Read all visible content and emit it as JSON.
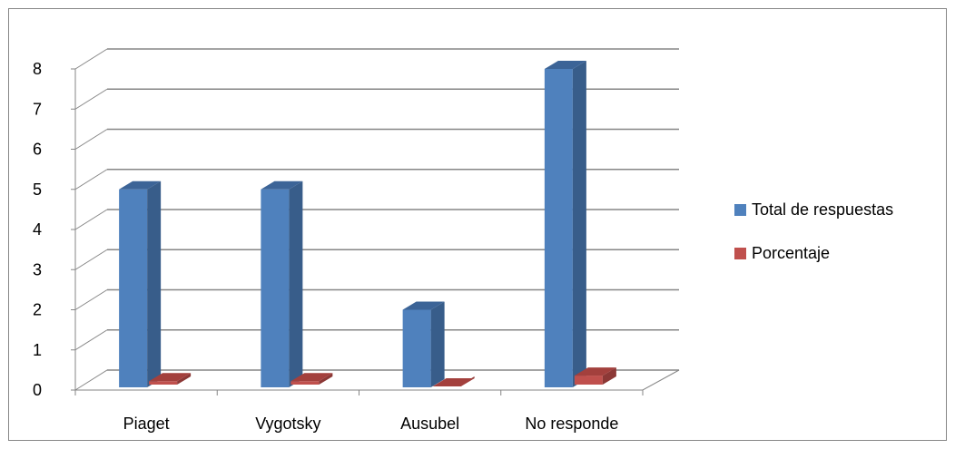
{
  "chart_data": {
    "type": "bar",
    "variant": "3d-clustered-column",
    "categories": [
      "Piaget",
      "Vygotsky",
      "Ausubel",
      "No responde"
    ],
    "series": [
      {
        "name": "Total de respuestas",
        "values": [
          5,
          5,
          2,
          8
        ],
        "color": "#4F81BD",
        "side_color": "#385D8A",
        "top_color": "#3C6497"
      },
      {
        "name": "Porcentaje",
        "values": [
          0.22,
          0.22,
          0.09,
          0.36
        ],
        "color": "#C0504D",
        "side_color": "#8C3836",
        "top_color": "#A3403D"
      }
    ],
    "ylim": [
      0,
      8
    ],
    "yticks": [
      "0",
      "1",
      "2",
      "3",
      "4",
      "5",
      "6",
      "7",
      "8"
    ],
    "grid": true,
    "legend_position": "right",
    "title": "",
    "xlabel": "",
    "ylabel": ""
  }
}
